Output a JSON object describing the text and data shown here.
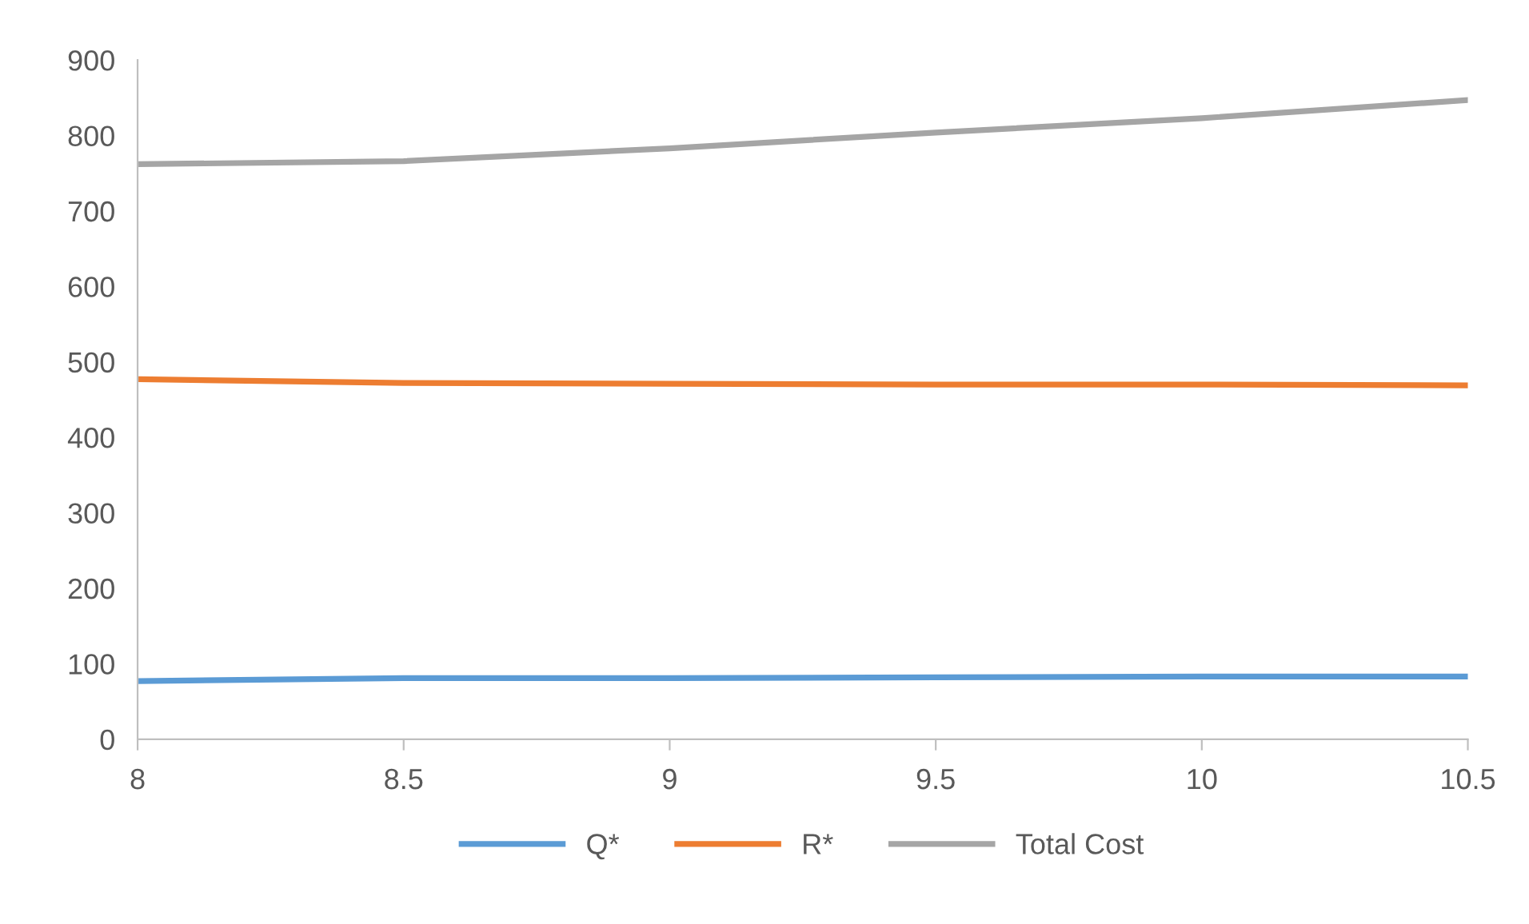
{
  "chart_data": {
    "type": "line",
    "x": [
      8,
      8.5,
      9,
      9.5,
      10,
      10.5
    ],
    "series": [
      {
        "name": "Q*",
        "color": "#5b9bd5",
        "values": [
          77,
          81,
          81,
          82,
          83,
          83
        ]
      },
      {
        "name": "R*",
        "color": "#ed7d31",
        "values": [
          477,
          472,
          471,
          470,
          470,
          469
        ]
      },
      {
        "name": "Total Cost",
        "color": "#a5a5a5",
        "values": [
          762,
          766,
          783,
          804,
          823,
          847
        ]
      }
    ],
    "xlim": [
      8,
      10.5
    ],
    "xticks": [
      8,
      8.5,
      9,
      9.5,
      10,
      10.5
    ],
    "ylim": [
      0,
      900
    ],
    "yticks": [
      0,
      100,
      200,
      300,
      400,
      500,
      600,
      700,
      800,
      900
    ],
    "grid": false,
    "legend": "bottom",
    "marker": "none",
    "line_style": "solid"
  }
}
